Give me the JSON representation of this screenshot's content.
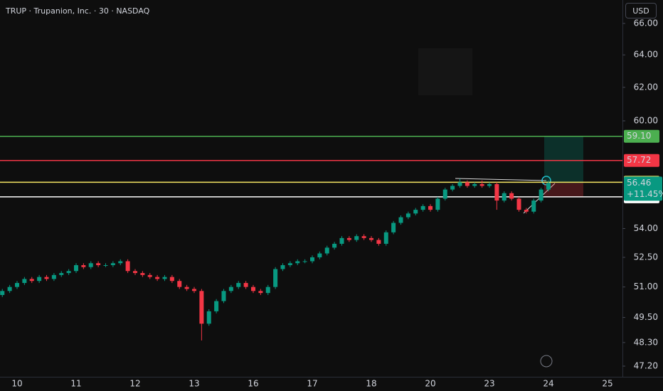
{
  "header": {
    "symbol": "TRUP · Trupanion, Inc. · 30 · NASDAQ",
    "currency": "USD"
  },
  "chart_data": {
    "type": "candlestick",
    "log_scale": true,
    "up_color": "#089981",
    "down_color": "#f23645",
    "categories": [
      null,
      null,
      "10",
      null,
      null,
      null,
      null,
      null,
      null,
      null,
      "11",
      null,
      null,
      null,
      null,
      null,
      null,
      null,
      "12",
      null,
      null,
      null,
      null,
      null,
      null,
      null,
      "13",
      null,
      null,
      null,
      null,
      null,
      null,
      null,
      "16",
      null,
      null,
      null,
      null,
      null,
      null,
      null,
      "17",
      null,
      null,
      null,
      null,
      null,
      null,
      null,
      "18",
      null,
      null,
      null,
      null,
      null,
      null,
      null,
      "20",
      null,
      null,
      null,
      null,
      null,
      null,
      null,
      "23",
      null,
      null,
      null,
      null,
      null,
      null,
      null,
      "24",
      null,
      null,
      null,
      null,
      null,
      null,
      null,
      "25",
      null
    ],
    "open": [
      50.6,
      50.8,
      51.0,
      51.2,
      51.4,
      51.3,
      51.5,
      51.4,
      51.6,
      51.7,
      51.8,
      52.1,
      52.0,
      52.2,
      52.1,
      52.1,
      52.2,
      52.3,
      51.8,
      51.7,
      51.6,
      51.5,
      51.4,
      51.5,
      51.3,
      51.0,
      50.9,
      50.8,
      49.2,
      49.8,
      50.3,
      50.8,
      51.0,
      51.2,
      51.0,
      50.8,
      50.7,
      51.0,
      51.9,
      52.1,
      52.2,
      52.3,
      52.3,
      52.5,
      52.7,
      53.0,
      53.2,
      53.5,
      53.4,
      53.6,
      53.5,
      53.4,
      53.2,
      53.8,
      54.3,
      54.6,
      54.8,
      55.0,
      55.2,
      55.0,
      55.6,
      56.1,
      56.3,
      56.5,
      56.3,
      56.4,
      56.3,
      56.4,
      55.5,
      55.9,
      55.6,
      55.0,
      54.9,
      55.5,
      56.1,
      null,
      null,
      null,
      null,
      null,
      null,
      null,
      null,
      null
    ],
    "high": [
      50.9,
      51.1,
      51.3,
      51.5,
      51.5,
      51.6,
      51.6,
      51.7,
      51.8,
      51.9,
      52.2,
      52.2,
      52.3,
      52.3,
      52.2,
      52.3,
      52.4,
      52.4,
      51.9,
      51.8,
      51.7,
      51.6,
      51.6,
      51.6,
      51.4,
      51.1,
      51.0,
      50.9,
      49.9,
      50.4,
      50.9,
      51.1,
      51.3,
      51.3,
      51.1,
      50.9,
      51.1,
      52.0,
      52.2,
      52.3,
      52.4,
      52.4,
      52.6,
      52.8,
      53.1,
      53.3,
      53.6,
      53.6,
      53.7,
      53.7,
      53.6,
      53.5,
      53.9,
      54.4,
      54.7,
      54.9,
      55.1,
      55.3,
      55.3,
      55.7,
      56.2,
      56.4,
      56.7,
      56.6,
      56.5,
      56.6,
      56.5,
      56.5,
      56.0,
      56.0,
      55.7,
      55.1,
      55.6,
      56.2,
      56.6,
      null,
      null,
      null,
      null,
      null,
      null,
      null,
      null,
      null
    ],
    "low": [
      50.5,
      50.7,
      50.9,
      51.1,
      51.2,
      51.2,
      51.3,
      51.3,
      51.5,
      51.6,
      51.7,
      51.9,
      51.9,
      52.0,
      52.0,
      52.0,
      52.1,
      51.7,
      51.6,
      51.5,
      51.4,
      51.3,
      51.3,
      51.2,
      50.9,
      50.8,
      50.7,
      48.4,
      49.1,
      49.7,
      50.2,
      50.7,
      50.9,
      50.9,
      50.7,
      50.6,
      50.6,
      50.9,
      51.8,
      52.0,
      52.1,
      52.2,
      52.2,
      52.4,
      52.6,
      52.9,
      53.1,
      53.3,
      53.3,
      53.4,
      53.3,
      53.1,
      53.1,
      53.7,
      54.2,
      54.5,
      54.7,
      54.9,
      54.9,
      54.9,
      55.5,
      56.0,
      56.2,
      56.2,
      56.2,
      56.2,
      56.2,
      55.0,
      55.4,
      55.5,
      54.9,
      54.8,
      54.8,
      55.4,
      56.0,
      null,
      null,
      null,
      null,
      null,
      null,
      null,
      null,
      null
    ],
    "close": [
      50.8,
      51.0,
      51.2,
      51.4,
      51.3,
      51.5,
      51.4,
      51.6,
      51.7,
      51.8,
      52.1,
      52.0,
      52.2,
      52.1,
      52.1,
      52.2,
      52.3,
      51.8,
      51.7,
      51.6,
      51.5,
      51.4,
      51.5,
      51.3,
      51.0,
      50.9,
      50.8,
      49.2,
      49.8,
      50.3,
      50.8,
      51.0,
      51.2,
      51.0,
      50.8,
      50.7,
      51.0,
      51.9,
      52.1,
      52.2,
      52.3,
      52.3,
      52.5,
      52.7,
      53.0,
      53.2,
      53.5,
      53.4,
      53.6,
      53.5,
      53.4,
      53.2,
      53.8,
      54.3,
      54.6,
      54.8,
      55.0,
      55.2,
      55.0,
      55.6,
      56.1,
      56.3,
      56.5,
      56.3,
      56.4,
      56.3,
      56.4,
      55.5,
      55.9,
      55.6,
      55.0,
      54.9,
      55.5,
      56.1,
      56.46,
      null,
      null,
      null,
      null,
      null,
      null,
      null,
      null,
      null
    ],
    "ylim": [
      46.71,
      67.53
    ],
    "yticks": [
      {
        "value": 66,
        "label": "66.00"
      },
      {
        "value": 64,
        "label": "64.00"
      },
      {
        "value": 62,
        "label": "62.00"
      },
      {
        "value": 60,
        "label": "60.00"
      },
      {
        "value": 54,
        "label": "54.00"
      },
      {
        "value": 52.5,
        "label": "52.50"
      },
      {
        "value": 51,
        "label": "51.00"
      },
      {
        "value": 49.5,
        "label": "49.50"
      },
      {
        "value": 48.3,
        "label": "48.30"
      },
      {
        "value": 47.2,
        "label": "47.20"
      }
    ],
    "levels": [
      {
        "value": 59.1,
        "label": "59.10",
        "color": "#4caf50"
      },
      {
        "value": 57.72,
        "label": "57.72",
        "color": "#f23645"
      },
      {
        "value": 56.5,
        "color": "#f5e663"
      },
      {
        "value": 55.7,
        "color": "#ffffff"
      }
    ],
    "last_price": {
      "value": 56.46,
      "label": "56.46",
      "change": "+11.45%",
      "color": "#089981"
    },
    "position": {
      "target": 59.1,
      "entry": 56.46,
      "stop": 55.7
    }
  }
}
